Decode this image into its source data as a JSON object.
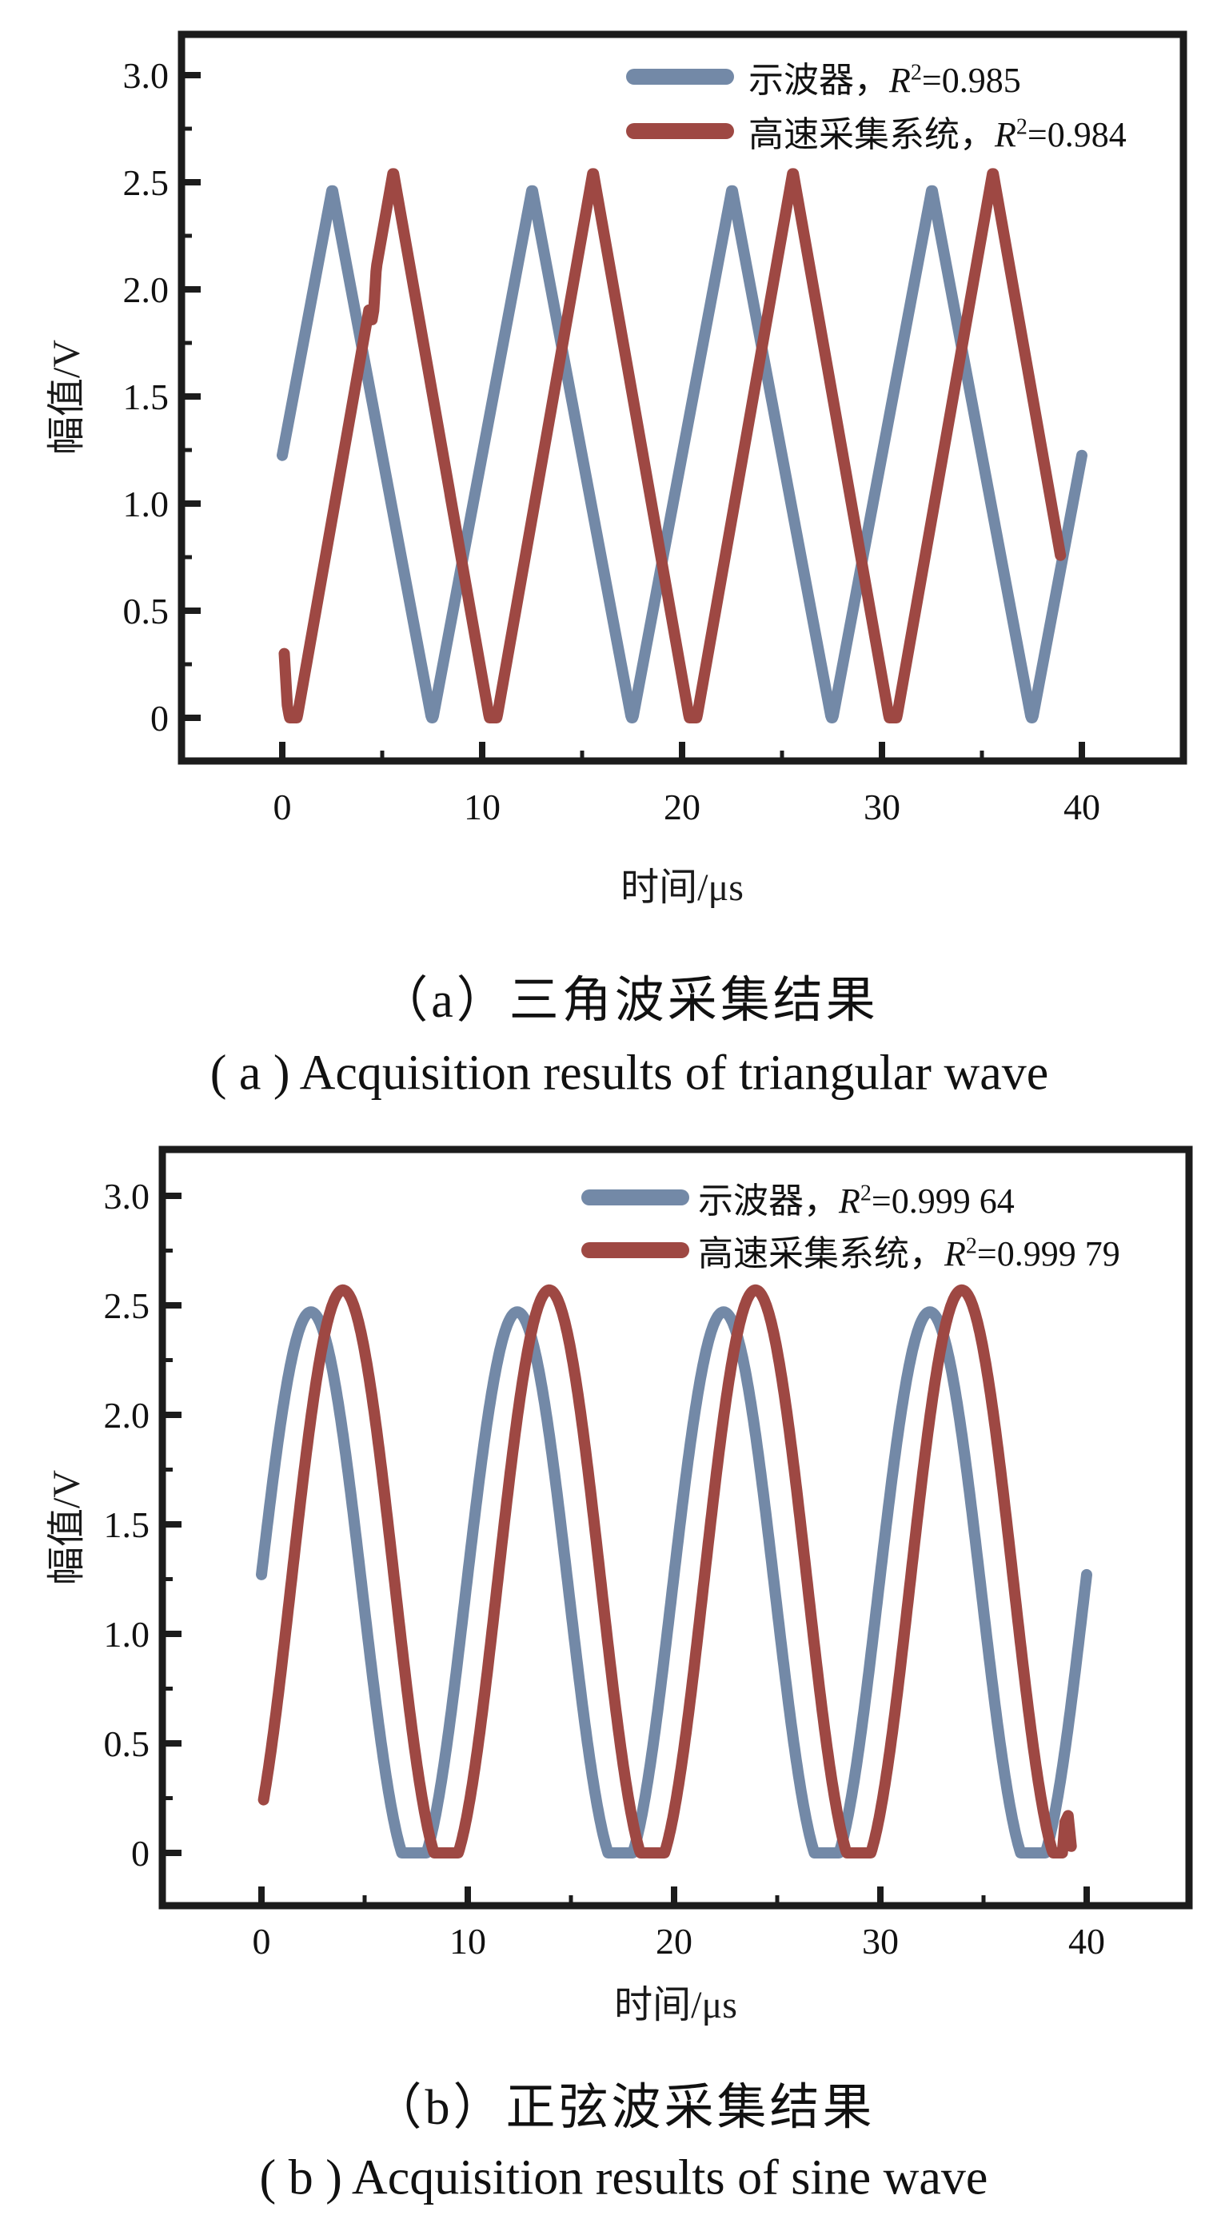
{
  "chart_data": [
    {
      "panel": "a",
      "type": "line",
      "wave_shape": "triangular",
      "xlabel": "时间/μs",
      "ylabel": "幅值/V",
      "xticks": [
        0,
        10,
        20,
        30,
        40
      ],
      "ytick_labels": [
        "0",
        "0.5",
        "1.0",
        "1.5",
        "2.0",
        "2.5",
        "3.0"
      ],
      "xlim": [
        -5.0,
        45.1
      ],
      "ylim": [
        -0.2,
        3.19
      ],
      "grid": false,
      "legend_position": "upper right",
      "caption_cn": "（a）三角波采集结果",
      "caption_en": "( a ) Acquisition results of triangular wave",
      "series": [
        {
          "name": "示波器",
          "separator": "，",
          "r_symbol": "R",
          "r_exponent": "2",
          "r_equals": "=",
          "r2": "0.985",
          "color": "#7389a7",
          "wave": "triangle",
          "period": 10,
          "peak_x": 2.5,
          "peak_y": 2.47,
          "trough_y": -0.02,
          "x_start": 0,
          "x_end": 40
        },
        {
          "name": "高速采集系统",
          "separator": "，",
          "r_symbol": "R",
          "r_exponent": "2",
          "r_equals": "=",
          "r2": "0.984",
          "color": "#9e4843",
          "wave": "triangle",
          "period": 10,
          "peak_x": 5.55,
          "peak_y": 2.55,
          "trough_y": -0.1,
          "x_start": 0.25,
          "x_end": 38.95,
          "head_points": [
            [
              0.1,
              0.3
            ]
          ],
          "glitches": [
            {
              "x1": 4.35,
              "x2": 4.7,
              "dy": -0.13
            }
          ]
        }
      ]
    },
    {
      "panel": "b",
      "type": "line",
      "wave_shape": "sine",
      "xlabel": "时间/μs",
      "ylabel": "幅值/V",
      "xticks": [
        0,
        10,
        20,
        30,
        40
      ],
      "ytick_labels": [
        "0",
        "0.5",
        "1.0",
        "1.5",
        "2.0",
        "2.5",
        "3.0"
      ],
      "xlim": [
        -4.9,
        45.0
      ],
      "ylim": [
        -0.24,
        3.21
      ],
      "grid": false,
      "legend_position": "upper right",
      "caption_cn": "（b）正弦波采集结果",
      "caption_en": "( b ) Acquisition results of sine wave",
      "series": [
        {
          "name": "示波器",
          "separator": "，",
          "r_symbol": "R",
          "r_exponent": "2",
          "r_equals": "=",
          "r2": "0.999 64",
          "color": "#7389a7",
          "wave": "sine",
          "period": 10,
          "peak_x": 2.4,
          "peak_y": 2.47,
          "trough_y": -0.09,
          "x_start": 0,
          "x_end": 40
        },
        {
          "name": "高速采集系统",
          "separator": "，",
          "r_symbol": "R",
          "r_exponent": "2",
          "r_equals": "=",
          "r2": "0.999 79",
          "color": "#9e4843",
          "wave": "sine",
          "period": 10,
          "peak_x": 3.95,
          "peak_y": 2.57,
          "trough_y": -0.09,
          "x_start": 0.1,
          "x_end": 38.85,
          "tail_points": [
            [
              38.95,
              0.14
            ],
            [
              39.1,
              0.17
            ],
            [
              39.25,
              0.03
            ]
          ]
        }
      ]
    }
  ]
}
